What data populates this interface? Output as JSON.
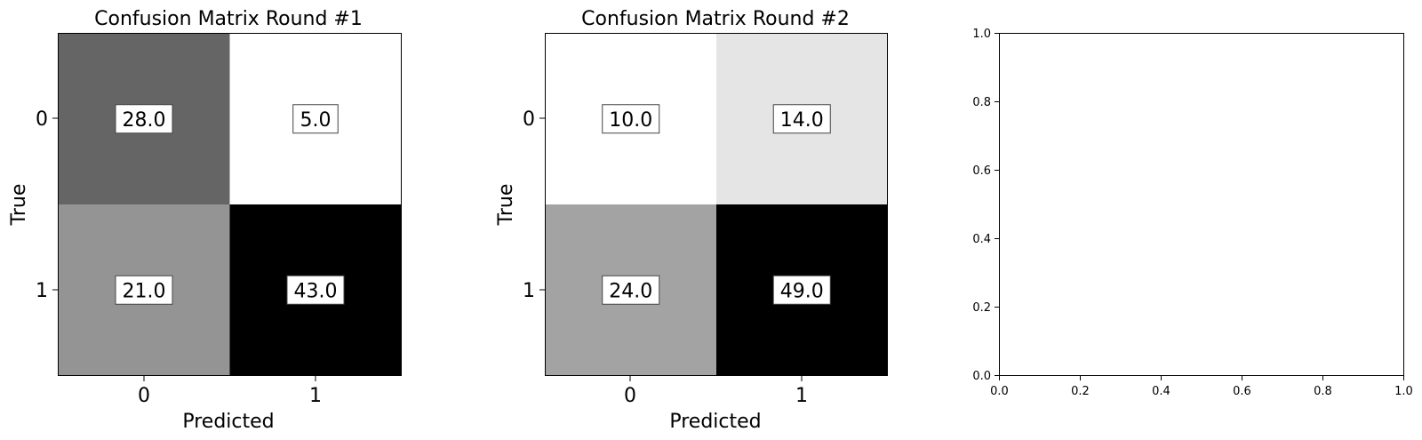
{
  "chart_data": [
    {
      "type": "heatmap",
      "title": "Confusion Matrix Round #1",
      "xlabel": "Predicted",
      "ylabel": "True",
      "x_categories": [
        "0",
        "1"
      ],
      "y_categories": [
        "0",
        "1"
      ],
      "values": [
        [
          28.0,
          5.0
        ],
        [
          21.0,
          43.0
        ]
      ],
      "value_labels": [
        [
          "28.0",
          "5.0"
        ],
        [
          "21.0",
          "43.0"
        ]
      ],
      "colormap": "Greys"
    },
    {
      "type": "heatmap",
      "title": "Confusion Matrix Round #2",
      "xlabel": "Predicted",
      "ylabel": "True",
      "x_categories": [
        "0",
        "1"
      ],
      "y_categories": [
        "0",
        "1"
      ],
      "values": [
        [
          10.0,
          14.0
        ],
        [
          24.0,
          49.0
        ]
      ],
      "value_labels": [
        [
          "10.0",
          "14.0"
        ],
        [
          "24.0",
          "49.0"
        ]
      ],
      "colormap": "Greys"
    },
    {
      "type": "scatter",
      "title": "",
      "xlabel": "",
      "ylabel": "",
      "xlim": [
        0,
        1
      ],
      "ylim": [
        0,
        1
      ],
      "xticks": [
        "0.0",
        "0.2",
        "0.4",
        "0.6",
        "0.8",
        "1.0"
      ],
      "yticks": [
        "0.0",
        "0.2",
        "0.4",
        "0.6",
        "0.8",
        "1.0"
      ],
      "series": []
    }
  ]
}
